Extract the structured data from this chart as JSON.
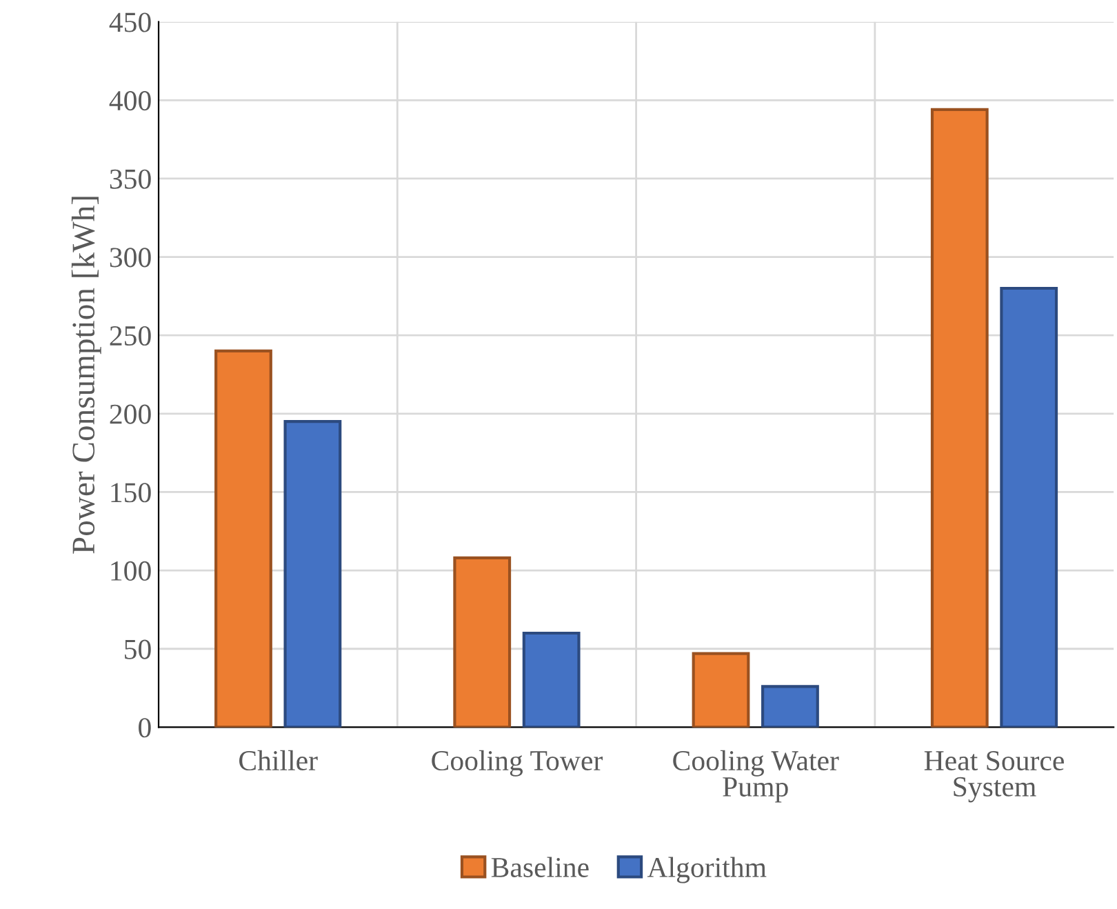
{
  "chart_data": {
    "type": "bar",
    "ylabel": "Power Consumption [kWh]",
    "categories": [
      "Chiller",
      "Cooling Tower",
      "Cooling Water\nPump",
      "Heat Source\nSystem"
    ],
    "series": [
      {
        "name": "Baseline",
        "color": "#ed7d31",
        "values": [
          240,
          108,
          47,
          394
        ]
      },
      {
        "name": "Algorithm",
        "color": "#4472c4",
        "values": [
          195,
          60,
          26,
          280
        ]
      }
    ],
    "ylim": [
      0,
      450
    ],
    "yticks": [
      0,
      50,
      100,
      150,
      200,
      250,
      300,
      350,
      400,
      450
    ],
    "grid": true,
    "legend": "bottom"
  }
}
